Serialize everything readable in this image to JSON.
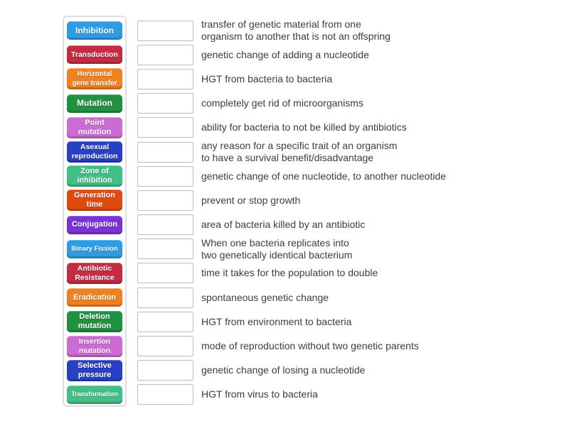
{
  "activity": {
    "kind_label": "match-up",
    "answer_slot_value": ""
  },
  "colors": {
    "blue": "#2E9BE2",
    "crimson": "#C52B42",
    "orange": "#F08122",
    "green": "#209141",
    "orchid": "#CC6BD4",
    "royal_blue": "#2840C4",
    "sea_green": "#43BE86",
    "orange_red": "#E1490F",
    "purple": "#7B33D9",
    "panel_border": "#dbe0e5",
    "slot_border": "#bcbcbc",
    "definition_text": "#3d3d3d"
  },
  "rows": [
    {
      "term": "Inhibition",
      "term_color": "#2E9BE2",
      "slot_value": "",
      "definition": "transfer of genetic material from one\norganism to another that is not an offspring"
    },
    {
      "term": "Transduction",
      "term_color": "#C52B42",
      "slot_value": "",
      "definition": "genetic change of adding a nucleotide"
    },
    {
      "term": "Horizontal\ngene transfer",
      "term_color": "#F08122",
      "slot_value": "",
      "definition": "HGT from bacteria to bacteria"
    },
    {
      "term": "Mutation",
      "term_color": "#209141",
      "slot_value": "",
      "definition": "completely get rid of microorganisms"
    },
    {
      "term": "Point\nmutation",
      "term_color": "#CC6BD4",
      "slot_value": "",
      "definition": "ability for bacteria to not be killed by antibiotics"
    },
    {
      "term": "Asexual\nreproduction",
      "term_color": "#2840C4",
      "slot_value": "",
      "definition": "any reason for a specific trait of an organism\nto have a survival benefit/disadvantage"
    },
    {
      "term": "Zone of\ninhibition",
      "term_color": "#43BE86",
      "slot_value": "",
      "definition": "genetic change of one nucleotide, to another nucleotide"
    },
    {
      "term": "Generation\ntime",
      "term_color": "#E1490F",
      "slot_value": "",
      "definition": "prevent or stop growth"
    },
    {
      "term": "Conjugation",
      "term_color": "#7B33D9",
      "slot_value": "",
      "definition": "area of bacteria killed by an antibiotic"
    },
    {
      "term": "Binary Fission",
      "term_color": "#2E9BE2",
      "slot_value": "",
      "definition": "When one bacteria replicates into\ntwo genetically identical bacterium"
    },
    {
      "term": "Antibiotic\nResistance",
      "term_color": "#C52B42",
      "slot_value": "",
      "definition": "time it takes for the population to double"
    },
    {
      "term": "Eradication",
      "term_color": "#F08122",
      "slot_value": "",
      "definition": "spontaneous genetic change"
    },
    {
      "term": "Deletion\nmutation",
      "term_color": "#209141",
      "slot_value": "",
      "definition": "HGT from environment to bacteria"
    },
    {
      "term": "Insertion\nmutation",
      "term_color": "#CC6BD4",
      "slot_value": "",
      "definition": "mode of reproduction without two genetic parents"
    },
    {
      "term": "Selective\npressure",
      "term_color": "#2840C4",
      "slot_value": "",
      "definition": "genetic change of losing a nucleotide"
    },
    {
      "term": "Transformation",
      "term_color": "#43BE86",
      "slot_value": "",
      "definition": "HGT from virus to bacteria"
    }
  ]
}
